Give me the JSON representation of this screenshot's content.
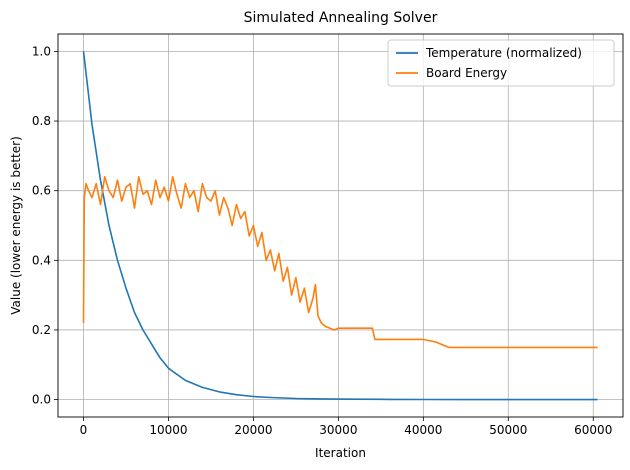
{
  "chart_data": {
    "type": "line",
    "title": "Simulated Annealing Solver",
    "xlabel": "Iteration",
    "ylabel": "Value (lower energy is better)",
    "xlim": [
      -3000,
      63500
    ],
    "ylim": [
      -0.05,
      1.05
    ],
    "x_ticks": [
      0,
      10000,
      20000,
      30000,
      40000,
      50000,
      60000
    ],
    "y_ticks": [
      0.0,
      0.2,
      0.4,
      0.6,
      0.8,
      1.0
    ],
    "x_tick_labels": [
      "0",
      "10000",
      "20000",
      "30000",
      "40000",
      "50000",
      "60000"
    ],
    "y_tick_labels": [
      "0.0",
      "0.2",
      "0.4",
      "0.6",
      "0.8",
      "1.0"
    ],
    "grid": true,
    "legend": "top-right",
    "series": [
      {
        "name": "Temperature (normalized)",
        "color": "#1f77b4",
        "x": [
          0,
          1000,
          2000,
          3000,
          4000,
          5000,
          6000,
          7000,
          8000,
          9000,
          10000,
          12000,
          14000,
          16000,
          18000,
          20000,
          22000,
          25000,
          28000,
          32000,
          36000,
          40000,
          45000,
          50000,
          55000,
          60500
        ],
        "y": [
          1.0,
          0.79,
          0.63,
          0.5,
          0.4,
          0.32,
          0.25,
          0.2,
          0.16,
          0.12,
          0.09,
          0.055,
          0.035,
          0.022,
          0.014,
          0.009,
          0.006,
          0.003,
          0.002,
          0.001,
          0.0005,
          0.0003,
          0.0001,
          0.0,
          0.0,
          0.0
        ]
      },
      {
        "name": "Board Energy",
        "color": "#ff7f0e",
        "x": [
          0,
          100,
          300,
          600,
          1000,
          1500,
          2000,
          2500,
          3000,
          3500,
          4000,
          4500,
          5000,
          5500,
          6000,
          6500,
          7000,
          7500,
          8000,
          8500,
          9000,
          9500,
          10000,
          10500,
          11000,
          11500,
          12000,
          12500,
          13000,
          13500,
          14000,
          14500,
          15000,
          15500,
          16000,
          16500,
          17000,
          17500,
          18000,
          18500,
          19000,
          19500,
          20000,
          20500,
          21000,
          21500,
          22000,
          22500,
          23000,
          23500,
          24000,
          24500,
          25000,
          25500,
          26000,
          26500,
          27000,
          27300,
          27600,
          28000,
          28500,
          29000,
          29500,
          30000,
          34000,
          34300,
          40000,
          41500,
          42000,
          43000,
          60500
        ],
        "y": [
          0.22,
          0.58,
          0.62,
          0.6,
          0.58,
          0.62,
          0.56,
          0.64,
          0.6,
          0.58,
          0.63,
          0.57,
          0.61,
          0.62,
          0.55,
          0.64,
          0.59,
          0.6,
          0.56,
          0.63,
          0.58,
          0.61,
          0.57,
          0.64,
          0.59,
          0.55,
          0.62,
          0.58,
          0.6,
          0.54,
          0.62,
          0.58,
          0.57,
          0.6,
          0.53,
          0.58,
          0.55,
          0.5,
          0.56,
          0.52,
          0.54,
          0.47,
          0.5,
          0.44,
          0.48,
          0.4,
          0.43,
          0.37,
          0.42,
          0.34,
          0.38,
          0.3,
          0.35,
          0.28,
          0.32,
          0.25,
          0.29,
          0.33,
          0.24,
          0.22,
          0.21,
          0.205,
          0.2,
          0.205,
          0.205,
          0.173,
          0.173,
          0.165,
          0.16,
          0.15,
          0.15
        ]
      }
    ]
  }
}
